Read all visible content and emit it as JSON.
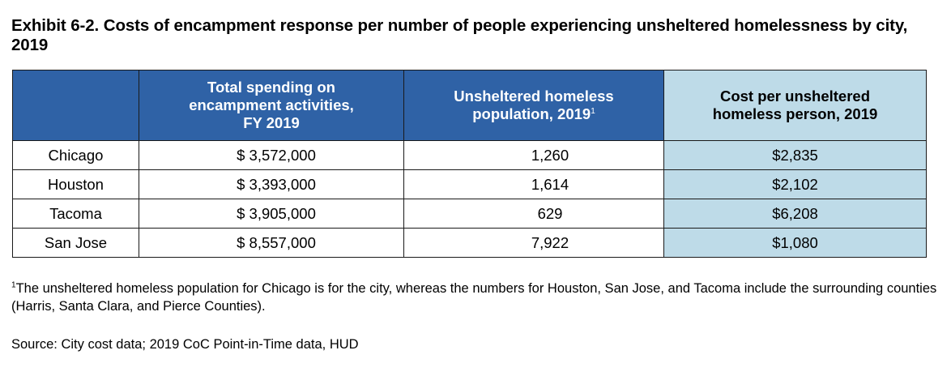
{
  "title": "Exhibit 6-2. Costs of encampment response per number of people experiencing unsheltered homelessness by city, 2019",
  "table": {
    "headers": {
      "city": "",
      "spending_line1": "Total spending on",
      "spending_line2": "encampment activities,",
      "spending_line3": "FY 2019",
      "population_line1": "Unsheltered homeless",
      "population_line2": "population, 2019",
      "population_marker": "1",
      "cost_line1": "Cost per unsheltered",
      "cost_line2": "homeless person, 2019"
    },
    "rows": [
      {
        "city": "Chicago",
        "spending": "$ 3,572,000",
        "population": "1,260",
        "cost": "$2,835"
      },
      {
        "city": "Houston",
        "spending": "$ 3,393,000",
        "population": "1,614",
        "cost": "$2,102"
      },
      {
        "city": "Tacoma",
        "spending": "$ 3,905,000",
        "population": "629",
        "cost": "$6,208"
      },
      {
        "city": "San Jose",
        "spending": "$ 8,557,000",
        "population": "7,922",
        "cost": "$1,080"
      }
    ]
  },
  "footnote": {
    "marker": "1",
    "text": "The unsheltered homeless population for Chicago is for the city, whereas the numbers for Houston, San Jose, and Tacoma include the surrounding counties (Harris, Santa Clara, and Pierce Counties)."
  },
  "source": "Source: City cost data; 2019 CoC Point-in-Time data, HUD",
  "colors": {
    "header_blue": "#2f62a6",
    "cost_column_light_blue": "#bedbe8",
    "border": "#1a1a1a"
  }
}
